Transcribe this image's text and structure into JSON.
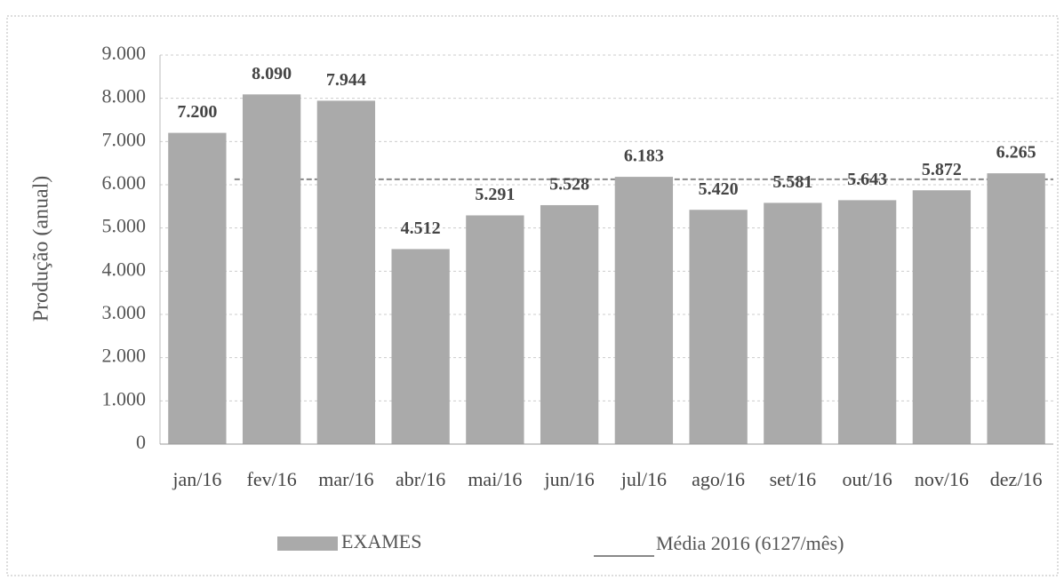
{
  "chart_data": {
    "type": "bar",
    "y_label": "Produção (anual)",
    "categories": [
      "jan/16",
      "fev/16",
      "mar/16",
      "abr/16",
      "mai/16",
      "jun/16",
      "jul/16",
      "ago/16",
      "set/16",
      "out/16",
      "nov/16",
      "dez/16"
    ],
    "series": [
      {
        "name": "EXAMES",
        "color": "#aaaaaa",
        "values": [
          7200,
          8090,
          7944,
          4512,
          5291,
          5528,
          6183,
          5420,
          5581,
          5643,
          5872,
          6265
        ],
        "value_labels": [
          "7.200",
          "8.090",
          "7.944",
          "4.512",
          "5.291",
          "5.528",
          "6.183",
          "5.420",
          "5.581",
          "5.643",
          "5.872",
          "6.265"
        ]
      }
    ],
    "reference_line": {
      "name": "Média 2016 (6127/mês)",
      "value": 6127,
      "color": "#888888"
    },
    "ylim": [
      0,
      9000
    ],
    "yticks": [
      0,
      {
        "value": 1000,
        "label": "1.000"
      },
      {
        "value": 2000,
        "label": "2.000"
      },
      {
        "value": 3000,
        "label": "3.000"
      },
      {
        "value": 4000,
        "label": "4.000"
      },
      {
        "value": 5000,
        "label": "5.000"
      },
      {
        "value": 6000,
        "label": "6.000"
      },
      {
        "value": 7000,
        "label": "7.000"
      },
      {
        "value": 8000,
        "label": "8.000"
      },
      {
        "value": 9000,
        "label": "9.000"
      }
    ],
    "grid": true
  }
}
